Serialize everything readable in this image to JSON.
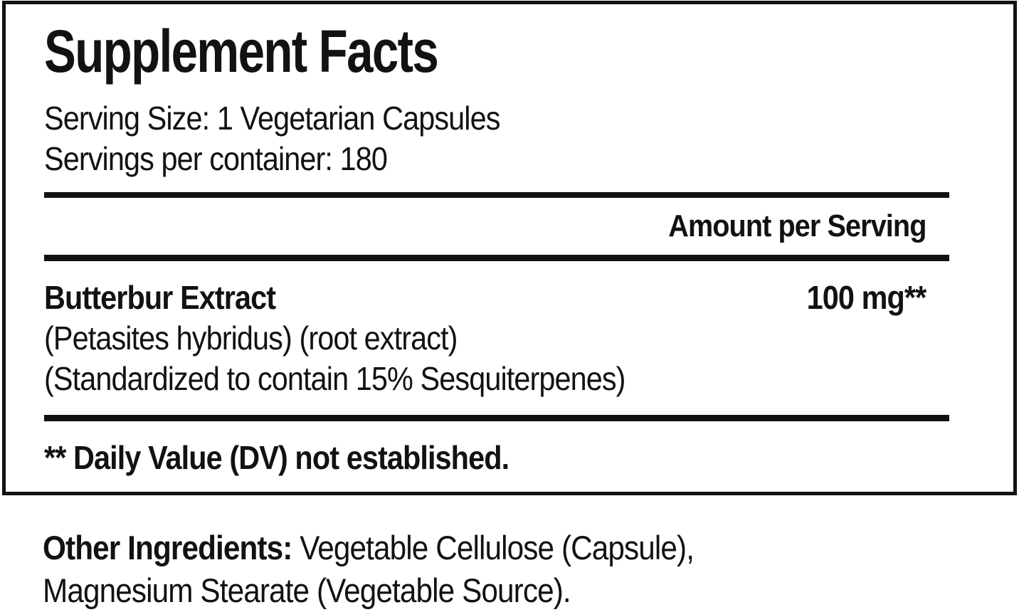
{
  "panel": {
    "title": "Supplement Facts",
    "serving_size": "Serving Size: 1 Vegetarian Capsules",
    "servings_per_container": "Servings per container: 180",
    "amount_header": "Amount per Serving",
    "rows": [
      {
        "name": "Butterbur Extract",
        "amount": "100 mg**",
        "details": [
          "(Petasites hybridus) (root extract)",
          "(Standardized to contain 15% Sesquiterpenes)"
        ]
      }
    ],
    "footnote": "** Daily Value (DV) not established."
  },
  "other_ingredients": {
    "label": "Other Ingredients:",
    "line1_rest": " Vegetable Cellulose (Capsule),",
    "line2": "Magnesium Stearate (Vegetable Source)."
  },
  "colors": {
    "text": "#121212",
    "background": "#ffffff"
  }
}
